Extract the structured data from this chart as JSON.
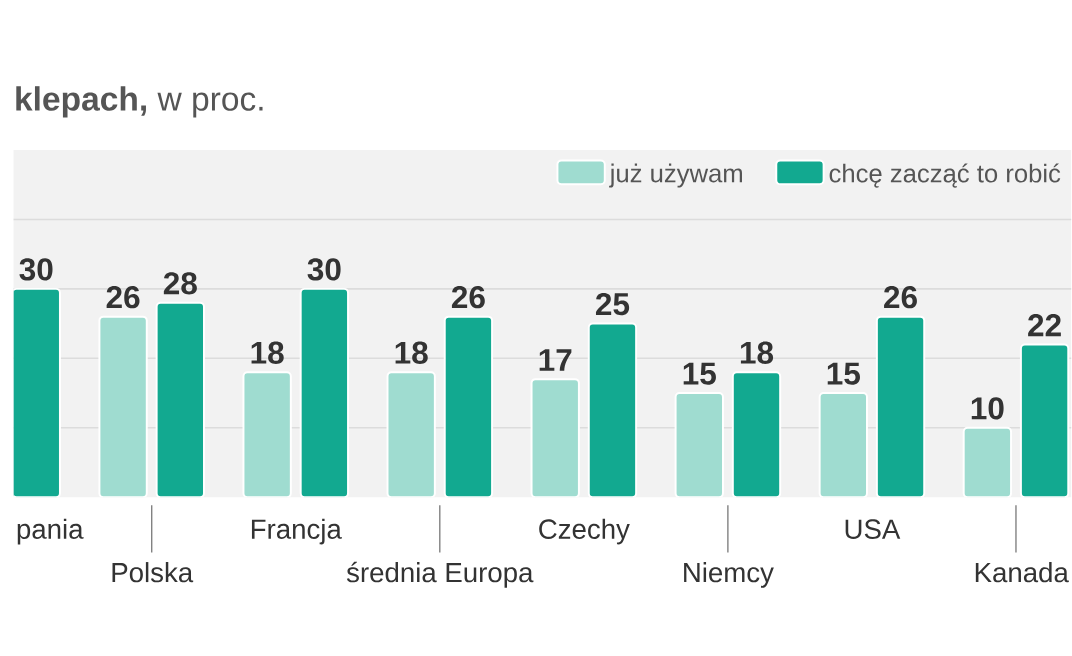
{
  "chart_data": {
    "type": "bar",
    "title": "**klepach,** w proc.",
    "categories": [
      "pania",
      "Polska",
      "Francja",
      "średnia Europa",
      "Czechy",
      "Niemcy",
      "USA",
      "Kanada"
    ],
    "series": [
      {
        "name": "już używam",
        "color": "#9fdcd0",
        "values": [
          null,
          26,
          18,
          18,
          17,
          15,
          15,
          10
        ]
      },
      {
        "name": "chcę zacząć to robić",
        "color": "#12a990",
        "values": [
          30,
          28,
          30,
          26,
          25,
          18,
          26,
          22
        ]
      }
    ],
    "ylim": [
      0,
      50
    ],
    "yticks": [
      {
        "value": 10,
        "label": null
      },
      {
        "value": 20,
        "label": null
      },
      {
        "value": 30,
        "label": null
      },
      {
        "value": 40,
        "label": null
      }
    ],
    "grid": "y",
    "legend": "top right",
    "data_labels": true,
    "tick_labels": false
  }
}
